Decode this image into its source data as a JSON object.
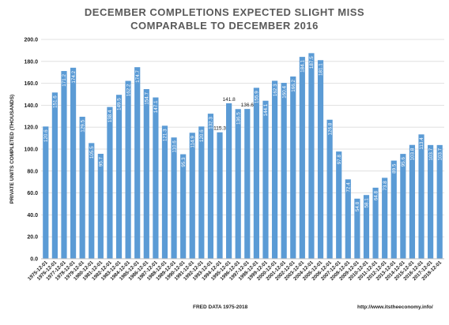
{
  "title_line1": "DECEMBER COMPLETIONS EXPECTED SLIGHT MISS",
  "title_line2": "COMPARABLE TO DECEMBER  2016",
  "footer_left": "FRED DATA 1975-2018",
  "footer_right": "http://www.itstheeconomy.info/",
  "bar_color": "#5b9bd5",
  "chart_data": {
    "type": "bar",
    "title": "DECEMBER COMPLETIONS EXPECTED SLIGHT MISS COMPARABLE TO DECEMBER  2016",
    "xlabel": "FRED DATA 1975-2018",
    "ylabel": "PRIVATE UNITS COMPLETED (THOUSANDS)",
    "ylim": [
      0,
      200
    ],
    "yticks": [
      "0.0",
      "20.0",
      "40.0",
      "60.0",
      "80.0",
      "100.0",
      "120.0",
      "140.0",
      "160.0",
      "180.0",
      "200.0"
    ],
    "grid": true,
    "categories": [
      "1975-12-01",
      "1976-12-01",
      "1977-12-01",
      "1978-12-01",
      "1979-12-01",
      "1980-12-01",
      "1981-12-01",
      "1982-12-01",
      "1983-12-01",
      "1984-12-01",
      "1985-12-01",
      "1986-12-01",
      "1987-12-01",
      "1988-12-01",
      "1989-12-01",
      "1990-12-01",
      "1991-12-01",
      "1992-12-01",
      "1993-12-01",
      "1994-12-01",
      "1995-12-01",
      "1996-12-01",
      "1997-12-01",
      "1998-12-01",
      "1999-12-01",
      "2000-12-01",
      "2001-12-01",
      "2002-12-01",
      "2003-12-01",
      "2004-12-01",
      "2005-12-01",
      "2006-12-01",
      "2007-12-01",
      "2008-12-01",
      "2009-12-01",
      "2010-12-01",
      "2011-12-01",
      "2012-12-01",
      "2013-12-01",
      "2014-12-01",
      "2015-12-01",
      "2016-12-01",
      "2017-12-01",
      "2018-12-01"
    ],
    "values": [
      120.6,
      151.6,
      171.2,
      174.2,
      129.5,
      105.5,
      95.7,
      138.4,
      149.5,
      162.2,
      174.7,
      154.7,
      147.1,
      121.3,
      110.6,
      95.3,
      114.9,
      120.6,
      132.3,
      115.3,
      141.8,
      136.5,
      136.6,
      155.9,
      144.1,
      162.3,
      160.4,
      166.2,
      184.1,
      187.5,
      181.1,
      126.8,
      97.8,
      72.4,
      54.8,
      58.1,
      64.8,
      73.8,
      89.5,
      95.6,
      103.8,
      113.4,
      103.7,
      103.7
    ],
    "value_labels": [
      "120.6",
      "151.6",
      "171.2",
      "174.2",
      "129.5",
      "105.5",
      "95.7",
      "138.4",
      "149.5",
      "162.2",
      "174.7",
      "154.7",
      "147.1",
      "121.3",
      "110.6",
      "95.3",
      "114.9",
      "120.6",
      "132.3",
      "115.3",
      "141.8",
      "136.5",
      "136.6",
      "155.9",
      "144.1",
      "162.3",
      "160.4",
      "166.2",
      "184.1",
      "187.5",
      "181.1",
      "126.8",
      "97.8",
      "72.4",
      "54.8",
      "58.1",
      "64.8",
      "73.8",
      "89.5",
      "95.6",
      "103.8",
      "113.4",
      "103.7",
      "103.7"
    ]
  }
}
